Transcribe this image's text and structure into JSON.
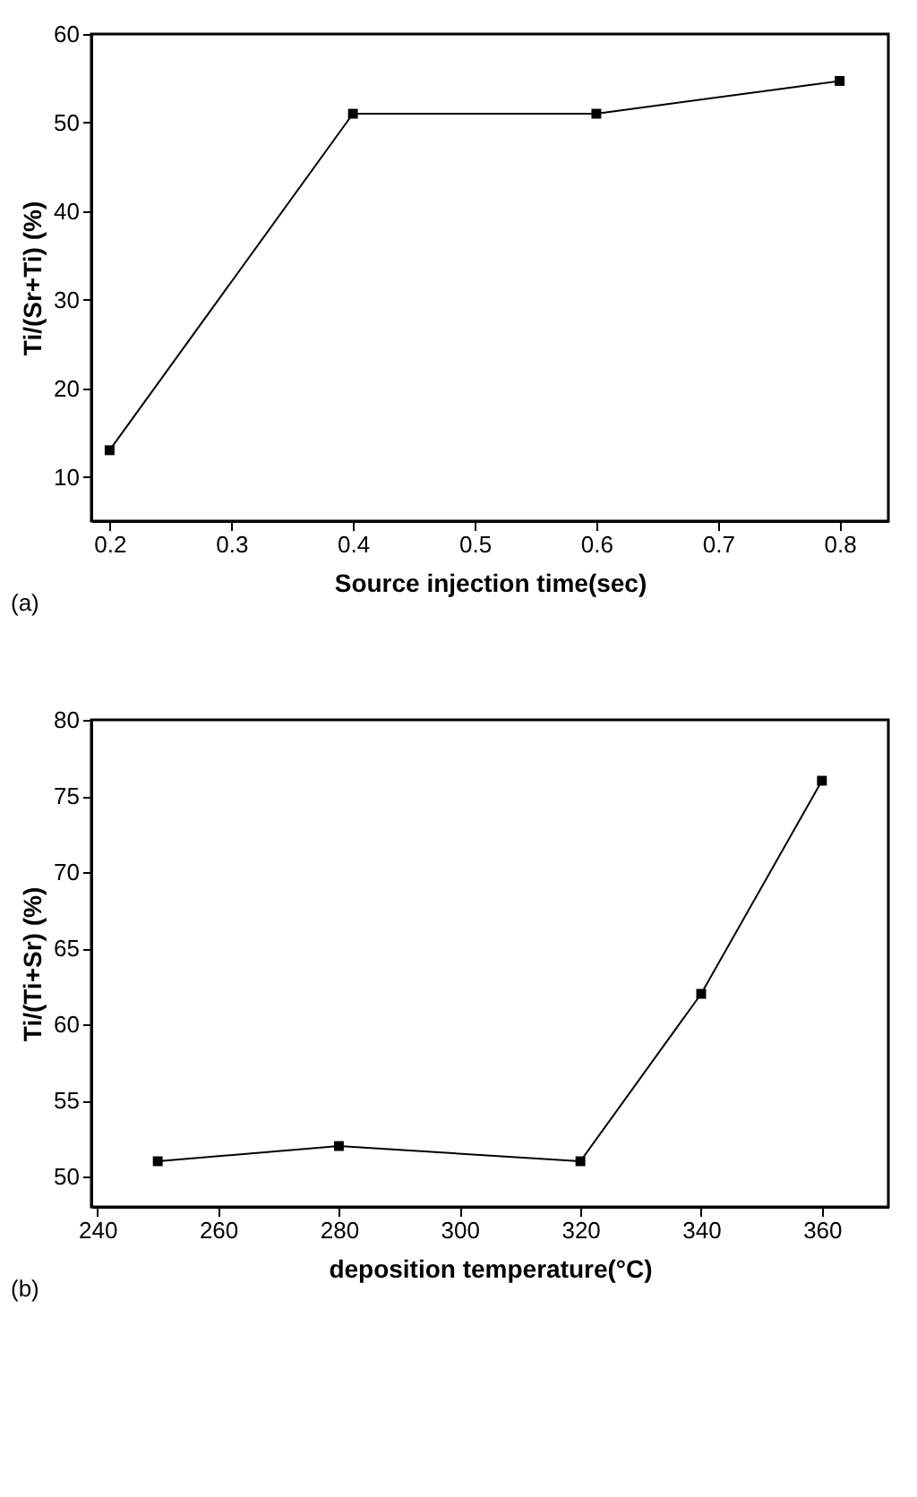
{
  "chart_data": [
    {
      "type": "line",
      "xlabel": "Source injection time(sec)",
      "ylabel": "Ti/(Sr+Ti) (%)",
      "x": [
        0.2,
        0.4,
        0.6,
        0.8
      ],
      "series": [
        {
          "color": "#000000",
          "values": [
            13,
            51,
            51,
            54.7
          ]
        }
      ],
      "xlim": [
        0.185,
        0.84
      ],
      "xticks": [
        0.2,
        0.3,
        0.4,
        0.5,
        0.6,
        0.7,
        0.8
      ],
      "ylim": [
        5,
        60
      ],
      "yticks": [
        10,
        20,
        30,
        40,
        50,
        60
      ],
      "marker": "square",
      "line_style": "solid",
      "grid": false,
      "annotations": [
        "(a)"
      ]
    },
    {
      "type": "line",
      "xlabel": "deposition temperature(°C)",
      "ylabel": "Ti/(Ti+Sr) (%)",
      "x": [
        250,
        280,
        320,
        340,
        360
      ],
      "series": [
        {
          "color": "#000000",
          "values": [
            51,
            52,
            51,
            62,
            76
          ]
        }
      ],
      "xlim": [
        239,
        371
      ],
      "xticks": [
        240,
        260,
        280,
        300,
        320,
        340,
        360
      ],
      "ylim": [
        48,
        80
      ],
      "yticks": [
        50,
        55,
        60,
        65,
        70,
        75,
        80
      ],
      "marker": "square",
      "line_style": "solid",
      "grid": false,
      "annotations": [
        "(b)"
      ]
    }
  ]
}
